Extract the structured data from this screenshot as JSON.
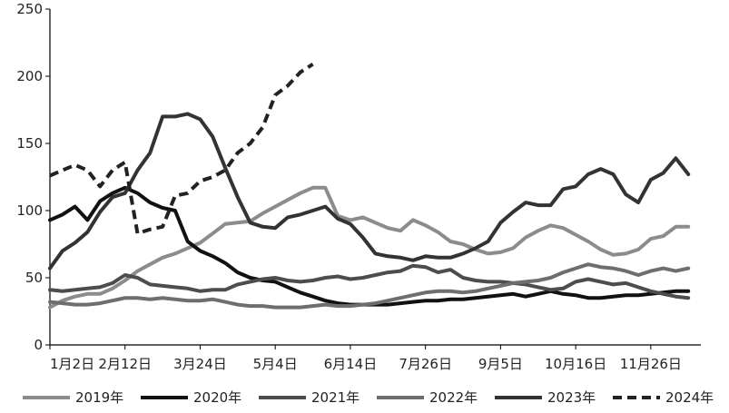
{
  "chart_data": {
    "type": "line",
    "grid": false,
    "legend_position": "bottom",
    "ylim": [
      0,
      250
    ],
    "y_ticks": [
      "0",
      "50",
      "100",
      "150",
      "200",
      "250"
    ],
    "x_ticks": [
      "1月2日",
      "2月12日",
      "3月24日",
      "5月4日",
      "6月14日",
      "7月26日",
      "9月5日",
      "10月16日",
      "11月26日"
    ],
    "x_tick_positions": [
      0,
      6,
      12,
      18,
      24,
      30,
      36,
      42,
      48
    ],
    "x_range": [
      0,
      52
    ],
    "series": [
      {
        "name": "2019年",
        "color": "#8c8c8c",
        "dash": false,
        "x": [
          0,
          1,
          2,
          3,
          4,
          5,
          6,
          7,
          8,
          9,
          10,
          11,
          12,
          13,
          14,
          15,
          16,
          17,
          18,
          19,
          20,
          21,
          22,
          23,
          24,
          25,
          26,
          27,
          28,
          29,
          30,
          31,
          32,
          33,
          34,
          35,
          36,
          37,
          38,
          39,
          40,
          41,
          42,
          43,
          44,
          45,
          46,
          47,
          48,
          49,
          50,
          51
        ],
        "values": [
          28,
          33,
          36,
          38,
          38,
          42,
          48,
          55,
          60,
          65,
          68,
          72,
          76,
          83,
          90,
          91,
          92,
          98,
          103,
          108,
          113,
          117,
          117,
          96,
          93,
          95,
          91,
          87,
          85,
          93,
          89,
          84,
          77,
          75,
          71,
          68,
          69,
          72,
          80,
          85,
          89,
          87,
          82,
          77,
          71,
          67,
          68,
          71,
          79,
          81,
          88,
          88
        ]
      },
      {
        "name": "2020年",
        "color": "#111111",
        "dash": false,
        "x": [
          0,
          1,
          2,
          3,
          4,
          5,
          6,
          7,
          8,
          9,
          10,
          11,
          12,
          13,
          14,
          15,
          16,
          17,
          18,
          19,
          20,
          21,
          22,
          23,
          24,
          25,
          26,
          27,
          28,
          29,
          30,
          31,
          32,
          33,
          34,
          35,
          36,
          37,
          38,
          39,
          40,
          41,
          42,
          43,
          44,
          45,
          46,
          47,
          48,
          49,
          50,
          51
        ],
        "values": [
          93,
          97,
          103,
          93,
          107,
          113,
          117,
          113,
          106,
          102,
          100,
          77,
          70,
          66,
          61,
          54,
          50,
          48,
          47,
          43,
          39,
          36,
          33,
          31,
          30,
          30,
          30,
          30,
          31,
          32,
          33,
          33,
          34,
          34,
          35,
          36,
          37,
          38,
          36,
          38,
          40,
          38,
          37,
          35,
          35,
          36,
          37,
          37,
          38,
          39,
          40,
          40
        ]
      },
      {
        "name": "2021年",
        "color": "#4d4d4d",
        "dash": false,
        "x": [
          0,
          1,
          2,
          3,
          4,
          5,
          6,
          7,
          8,
          9,
          10,
          11,
          12,
          13,
          14,
          15,
          16,
          17,
          18,
          19,
          20,
          21,
          22,
          23,
          24,
          25,
          26,
          27,
          28,
          29,
          30,
          31,
          32,
          33,
          34,
          35,
          36,
          37,
          38,
          39,
          40,
          41,
          42,
          43,
          44,
          45,
          46,
          47,
          48,
          49,
          50,
          51
        ],
        "values": [
          41,
          40,
          41,
          42,
          43,
          46,
          52,
          50,
          45,
          44,
          43,
          42,
          40,
          41,
          41,
          45,
          47,
          49,
          50,
          48,
          47,
          48,
          50,
          51,
          49,
          50,
          52,
          54,
          55,
          59,
          58,
          54,
          56,
          50,
          48,
          47,
          47,
          46,
          45,
          43,
          41,
          42,
          47,
          49,
          47,
          45,
          46,
          43,
          40,
          38,
          36,
          35
        ]
      },
      {
        "name": "2022年",
        "color": "#6e6e6e",
        "dash": false,
        "x": [
          0,
          1,
          2,
          3,
          4,
          5,
          6,
          7,
          8,
          9,
          10,
          11,
          12,
          13,
          14,
          15,
          16,
          17,
          18,
          19,
          20,
          21,
          22,
          23,
          24,
          25,
          26,
          27,
          28,
          29,
          30,
          31,
          32,
          33,
          34,
          35,
          36,
          37,
          38,
          39,
          40,
          41,
          42,
          43,
          44,
          45,
          46,
          47,
          48,
          49,
          50,
          51
        ],
        "values": [
          32,
          31,
          30,
          30,
          31,
          33,
          35,
          35,
          34,
          35,
          34,
          33,
          33,
          34,
          32,
          30,
          29,
          29,
          28,
          28,
          28,
          29,
          30,
          29,
          29,
          30,
          31,
          33,
          35,
          37,
          39,
          40,
          40,
          39,
          40,
          42,
          44,
          46,
          47,
          48,
          50,
          54,
          57,
          60,
          58,
          57,
          55,
          52,
          55,
          57,
          55,
          57
        ]
      },
      {
        "name": "2023年",
        "color": "#333333",
        "dash": false,
        "x": [
          0,
          1,
          2,
          3,
          4,
          5,
          6,
          7,
          8,
          9,
          10,
          11,
          12,
          13,
          14,
          15,
          16,
          17,
          18,
          19,
          20,
          21,
          22,
          23,
          24,
          25,
          26,
          27,
          28,
          29,
          30,
          31,
          32,
          33,
          34,
          35,
          36,
          37,
          38,
          39,
          40,
          41,
          42,
          43,
          44,
          45,
          46,
          47,
          48,
          49,
          50,
          51
        ],
        "values": [
          57,
          70,
          76,
          84,
          99,
          110,
          113,
          130,
          143,
          170,
          170,
          172,
          168,
          155,
          132,
          110,
          91,
          88,
          87,
          95,
          97,
          100,
          103,
          94,
          90,
          80,
          68,
          66,
          65,
          63,
          66,
          65,
          65,
          68,
          72,
          77,
          91,
          99,
          106,
          104,
          104,
          116,
          118,
          127,
          131,
          127,
          112,
          106,
          123,
          128,
          139,
          127
        ]
      },
      {
        "name": "2024年",
        "color": "#222222",
        "dash": true,
        "x": [
          0,
          1,
          2,
          3,
          4,
          5,
          6,
          7,
          8,
          9,
          10,
          11,
          12,
          13,
          14,
          15,
          16,
          17,
          18,
          19,
          20,
          21
        ],
        "values": [
          126,
          130,
          134,
          130,
          118,
          130,
          136,
          83,
          86,
          88,
          111,
          113,
          122,
          125,
          130,
          143,
          150,
          162,
          186,
          193,
          203,
          209
        ]
      }
    ]
  }
}
